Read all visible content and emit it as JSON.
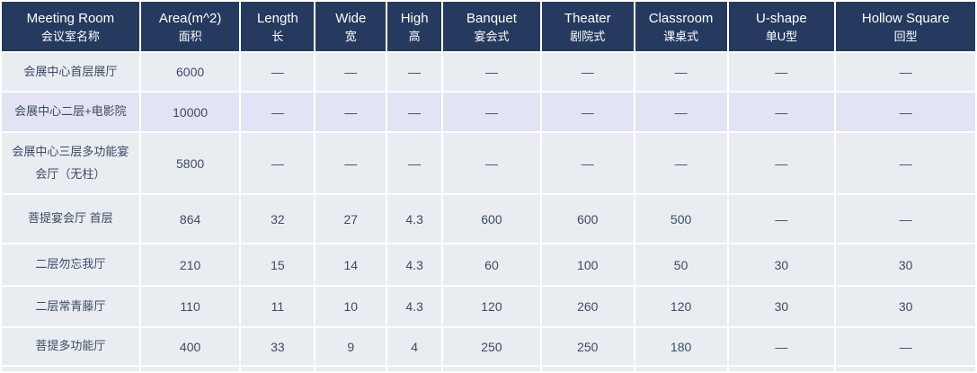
{
  "table": {
    "columns": [
      {
        "id": "meeting-room",
        "en": "Meeting Room",
        "zh": "会议室名称"
      },
      {
        "id": "area",
        "en": "Area(m^2)",
        "zh": "面积"
      },
      {
        "id": "length",
        "en": "Length",
        "zh": "长"
      },
      {
        "id": "wide",
        "en": "Wide",
        "zh": "宽"
      },
      {
        "id": "high",
        "en": "High",
        "zh": "高"
      },
      {
        "id": "banquet",
        "en": "Banquet",
        "zh": "宴会式"
      },
      {
        "id": "theater",
        "en": "Theater",
        "zh": "剧院式"
      },
      {
        "id": "classroom",
        "en": "Classroom",
        "zh": "课桌式"
      },
      {
        "id": "u-shape",
        "en": "U-shape",
        "zh": "单U型"
      },
      {
        "id": "hollow-square",
        "en": "Hollow Square",
        "zh": "回型"
      }
    ],
    "rows": [
      {
        "name": "会展中心首层展厅",
        "highlighted": false,
        "values": [
          "6000",
          "—",
          "—",
          "—",
          "—",
          "—",
          "—",
          "—",
          "—"
        ]
      },
      {
        "name": "会展中心二层+电影院",
        "highlighted": true,
        "values": [
          "10000",
          "—",
          "—",
          "—",
          "—",
          "—",
          "—",
          "—",
          "—"
        ]
      },
      {
        "name": "会展中心三层多功能宴会厅（无柱）",
        "highlighted": false,
        "values": [
          "5800",
          "—",
          "—",
          "—",
          "—",
          "—",
          "—",
          "—",
          "—"
        ]
      },
      {
        "name": "菩提宴会厅 首层",
        "highlighted": false,
        "values": [
          "864",
          "32",
          "27",
          "4.3",
          "600",
          "600",
          "500",
          "—",
          "—"
        ]
      },
      {
        "name": "二层勿忘我厅",
        "highlighted": false,
        "values": [
          "210",
          "15",
          "14",
          "4.3",
          "60",
          "100",
          "50",
          "30",
          "30"
        ]
      },
      {
        "name": "二层常青藤厅",
        "highlighted": false,
        "values": [
          "110",
          "11",
          "10",
          "4.3",
          "120",
          "260",
          "120",
          "30",
          "30"
        ]
      },
      {
        "name": "菩提多功能厅",
        "highlighted": false,
        "values": [
          "400",
          "33",
          "9",
          "4",
          "250",
          "250",
          "180",
          "—",
          "—"
        ]
      }
    ],
    "colors": {
      "header_bg": "#253a5e",
      "header_text": "#ffffff",
      "row_bg": "#e9edf2",
      "row_highlight_bg": "#e3e3f6",
      "cell_text": "#3c4b63",
      "grid": "#ffffff"
    }
  }
}
